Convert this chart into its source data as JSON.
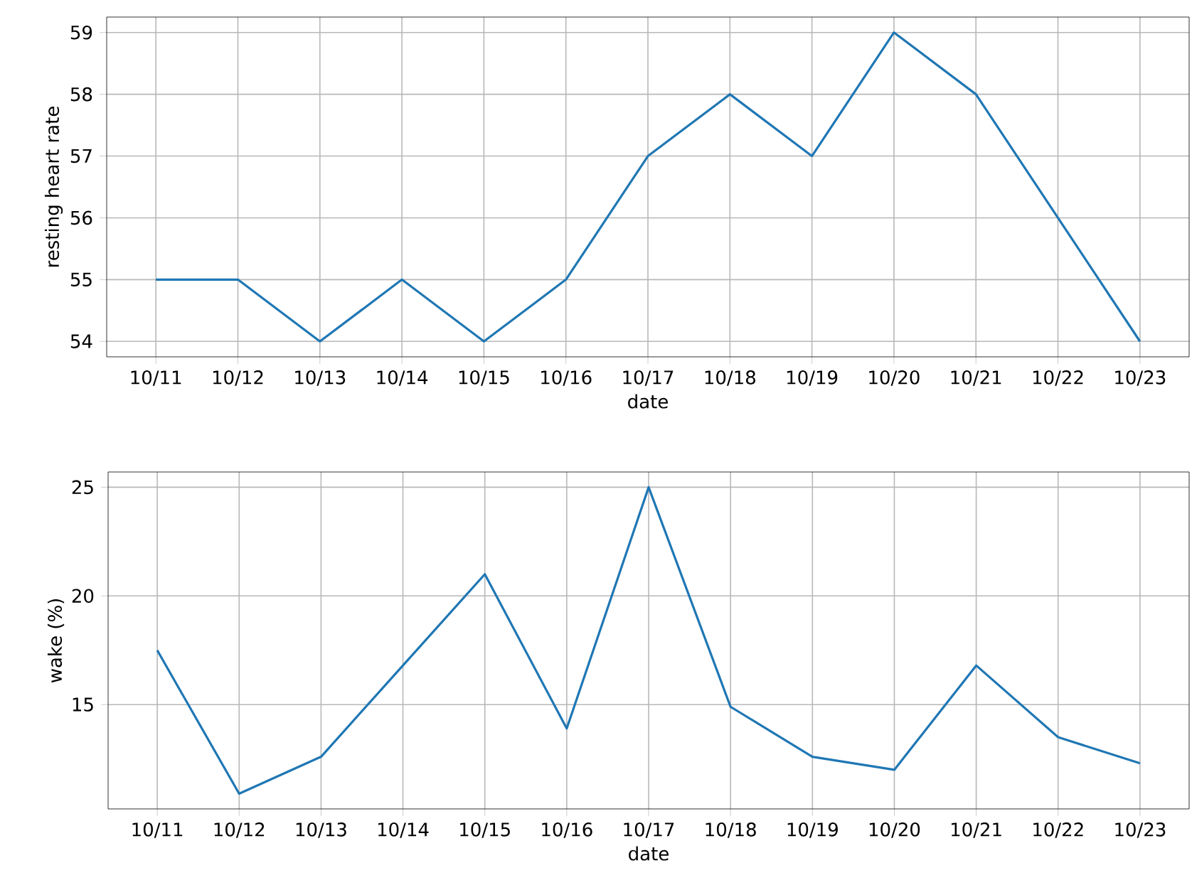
{
  "chart_data": [
    {
      "type": "line",
      "categories": [
        "10/11",
        "10/12",
        "10/13",
        "10/14",
        "10/15",
        "10/16",
        "10/17",
        "10/18",
        "10/19",
        "10/20",
        "10/21",
        "10/22",
        "10/23"
      ],
      "values": [
        55,
        55,
        54,
        55,
        54,
        55,
        57,
        58,
        57,
        59,
        58,
        56,
        54
      ],
      "color": "#1f77b4",
      "xlabel": "date",
      "ylabel": "resting heart rate",
      "ylim": [
        53.75,
        59.25
      ],
      "yticks": [
        54,
        55,
        56,
        57,
        58,
        59
      ],
      "grid": true
    },
    {
      "type": "line",
      "categories": [
        "10/11",
        "10/12",
        "10/13",
        "10/14",
        "10/15",
        "10/16",
        "10/17",
        "10/18",
        "10/19",
        "10/20",
        "10/21",
        "10/22",
        "10/23"
      ],
      "values": [
        17.5,
        10.9,
        12.6,
        16.8,
        21.0,
        13.9,
        25,
        14.9,
        12.6,
        12.0,
        16.8,
        13.5,
        12.3
      ],
      "color": "#1f77b4",
      "xlabel": "date",
      "ylabel": "wake (%)",
      "ylim": [
        10.2,
        25.7
      ],
      "yticks": [
        15,
        20,
        25
      ],
      "grid": true
    }
  ]
}
